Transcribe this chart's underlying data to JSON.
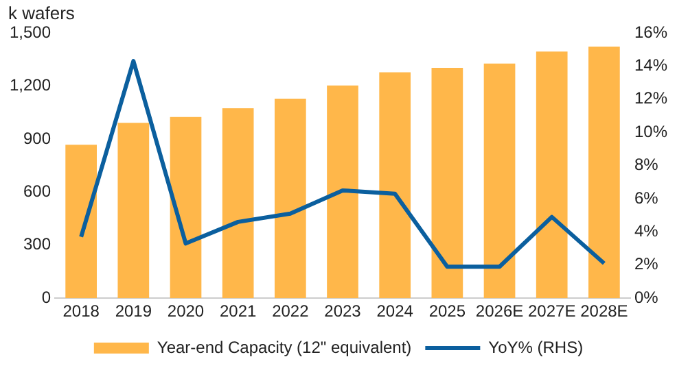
{
  "chart_data": {
    "type": "bar",
    "ylabel": "k wafers",
    "categories": [
      "2018",
      "2019",
      "2020",
      "2021",
      "2022",
      "2023",
      "2024",
      "2025",
      "2026E",
      "2027E",
      "2028E"
    ],
    "series": [
      {
        "name": "Year-end Capacity (12\" equivalent)",
        "color": "#ffb74a",
        "values": [
          868,
          992,
          1024,
          1074,
          1128,
          1203,
          1277,
          1302,
          1327,
          1394,
          1423
        ]
      },
      {
        "name": "YoY% (RHS)",
        "type": "line",
        "axis": "y2",
        "color": "#0b5f9e",
        "values": [
          3.7,
          14.3,
          3.3,
          4.6,
          5.1,
          6.5,
          6.3,
          1.9,
          1.9,
          4.9,
          2.1
        ]
      }
    ],
    "ylim": [
      0,
      1500
    ],
    "yticks": [
      0,
      {
        "value": 300,
        "label": "300"
      },
      {
        "value": 600,
        "label": "600"
      },
      {
        "value": 900,
        "label": "900"
      },
      {
        "value": 1200,
        "label": "1,200"
      },
      {
        "value": 1500,
        "label": "1,500"
      }
    ],
    "y2lim": [
      0,
      16
    ],
    "y2ticks": [
      {
        "value": 0,
        "label": "0%"
      },
      {
        "value": 2,
        "label": "2%"
      },
      {
        "value": 4,
        "label": "4%"
      },
      {
        "value": 6,
        "label": "6%"
      },
      {
        "value": 8,
        "label": "8%"
      },
      {
        "value": 10,
        "label": "10%"
      },
      {
        "value": 12,
        "label": "12%"
      },
      {
        "value": 14,
        "label": "14%"
      },
      {
        "value": 16,
        "label": "16%"
      }
    ],
    "grid": false,
    "legend": "bottom",
    "marker": "none"
  }
}
